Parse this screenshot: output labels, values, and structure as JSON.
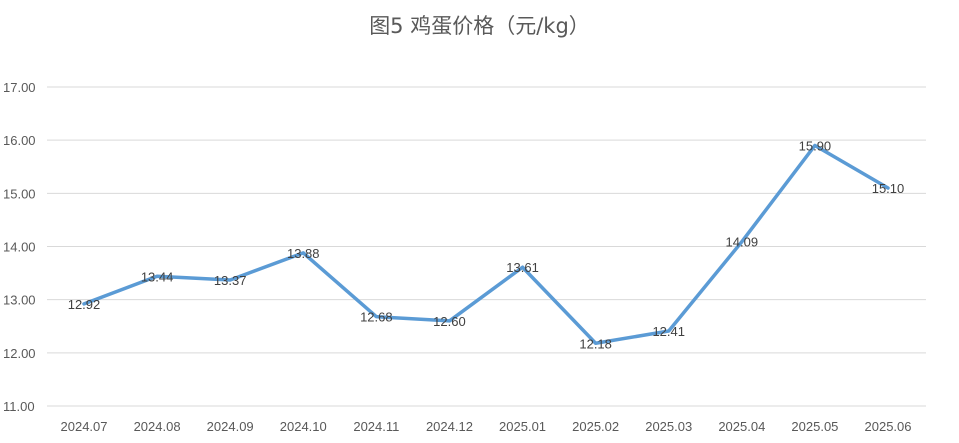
{
  "chart_data": {
    "type": "line",
    "title": "图5 鸡蛋价格（元/kg）",
    "xlabel": "",
    "ylabel": "",
    "categories": [
      "2024.07",
      "2024.08",
      "2024.09",
      "2024.10",
      "2024.11",
      "2024.12",
      "2025.01",
      "2025.02",
      "2025.03",
      "2025.04",
      "2025.05",
      "2025.06"
    ],
    "series": [
      {
        "values": [
          12.92,
          13.44,
          13.37,
          13.88,
          12.68,
          12.6,
          13.61,
          12.18,
          12.41,
          14.09,
          15.9,
          15.1
        ],
        "labels": [
          "12.92",
          "13.44",
          "13.37",
          "13.88",
          "12.68",
          "12.60",
          "13.61",
          "12.18",
          "12.41",
          "14.09",
          "15.90",
          "15.10"
        ],
        "color": "#5B9BD5"
      }
    ],
    "ylim": [
      11,
      17
    ],
    "yticks": [
      "11.00",
      "12.00",
      "13.00",
      "14.00",
      "15.00",
      "16.00",
      "17.00"
    ],
    "grid": true,
    "legend": "none",
    "gridline_color": "#d9d9d9"
  }
}
